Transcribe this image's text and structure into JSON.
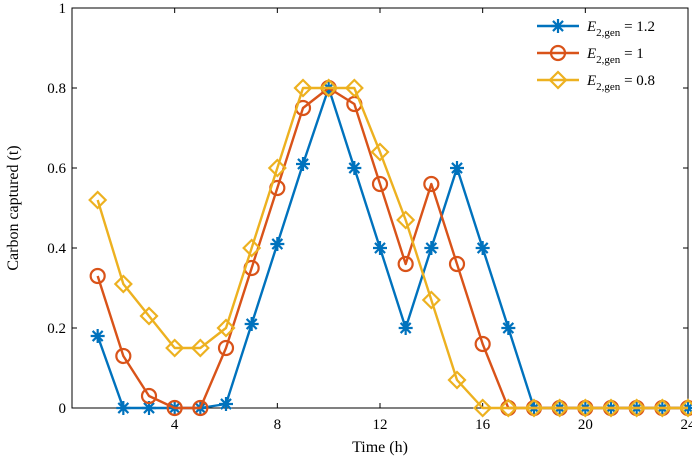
{
  "chart_data": {
    "type": "line",
    "xlabel": "Time (h)",
    "ylabel": "Carbon captured (t)",
    "xlim": [
      0,
      24
    ],
    "ylim": [
      0,
      1
    ],
    "xticks": [
      4,
      8,
      12,
      16,
      20,
      24
    ],
    "yticks": [
      0,
      0.2,
      0.4,
      0.6,
      0.8,
      1
    ],
    "xtick_labels": [
      "4",
      "8",
      "12",
      "16",
      "20",
      "24"
    ],
    "ytick_labels": [
      "0",
      "0.2",
      "0.4",
      "0.6",
      "0.8",
      "1"
    ],
    "grid": false,
    "legend_position": "top-right",
    "x": [
      1,
      2,
      3,
      4,
      5,
      6,
      7,
      8,
      9,
      10,
      11,
      12,
      13,
      14,
      15,
      16,
      17,
      18,
      19,
      20,
      21,
      22,
      23,
      24
    ],
    "series": [
      {
        "legend_var": "E",
        "legend_sub": "2,gen",
        "legend_eq": " = 1.2",
        "color": "#0072BD",
        "marker": "asterisk",
        "values": [
          0.18,
          0,
          0,
          0,
          0,
          0.01,
          0.21,
          0.41,
          0.61,
          0.8,
          0.6,
          0.4,
          0.2,
          0.4,
          0.6,
          0.4,
          0.2,
          0,
          0,
          0,
          0,
          0,
          0,
          0
        ]
      },
      {
        "legend_var": "E",
        "legend_sub": "2,gen",
        "legend_eq": " = 1",
        "color": "#D95319",
        "marker": "circle",
        "values": [
          0.33,
          0.13,
          0.03,
          0,
          0,
          0.15,
          0.35,
          0.55,
          0.75,
          0.8,
          0.76,
          0.56,
          0.36,
          0.56,
          0.36,
          0.16,
          0,
          0,
          0,
          0,
          0,
          0,
          0,
          0
        ]
      },
      {
        "legend_var": "E",
        "legend_sub": "2,gen",
        "legend_eq": " = 0.8",
        "color": "#EDB120",
        "marker": "diamond",
        "values": [
          0.52,
          0.31,
          0.23,
          0.15,
          0.15,
          0.2,
          0.4,
          0.6,
          0.8,
          0.8,
          0.8,
          0.64,
          0.47,
          0.27,
          0.07,
          0,
          0,
          0,
          0,
          0,
          0,
          0,
          0,
          0
        ]
      }
    ]
  }
}
